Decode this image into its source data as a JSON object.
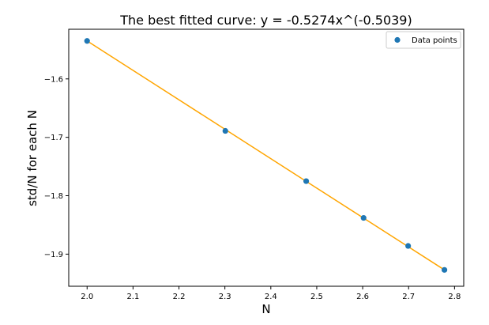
{
  "chart_data": {
    "type": "scatter",
    "title": "The best fitted curve: y = -0.5274x^(-0.5039)",
    "xlabel": "N",
    "ylabel": "std/N for each N",
    "xlim": [
      1.96,
      2.82
    ],
    "ylim": [
      -1.955,
      -1.515
    ],
    "xticks": [
      2.0,
      2.1,
      2.2,
      2.3,
      2.4,
      2.5,
      2.6,
      2.7,
      2.8
    ],
    "xtick_labels": [
      "2.0",
      "2.1",
      "2.2",
      "2.3",
      "2.4",
      "2.5",
      "2.6",
      "2.7",
      "2.8"
    ],
    "yticks": [
      -1.6,
      -1.7,
      -1.8,
      -1.9
    ],
    "ytick_labels": [
      "−1.6",
      "−1.7",
      "−1.8",
      "−1.9"
    ],
    "grid": false,
    "legend": {
      "position": "top-right",
      "entries": [
        "Data points"
      ]
    },
    "series": [
      {
        "name": "Data points",
        "kind": "scatter",
        "color": "#1f77b4",
        "x": [
          2.0,
          2.301,
          2.477,
          2.602,
          2.699,
          2.778
        ],
        "y": [
          -1.535,
          -1.689,
          -1.775,
          -1.838,
          -1.886,
          -1.927
        ]
      },
      {
        "kind": "line",
        "color": "#ffa500",
        "x": [
          2.0,
          2.778
        ],
        "y": [
          -1.535,
          -1.927
        ]
      }
    ]
  }
}
